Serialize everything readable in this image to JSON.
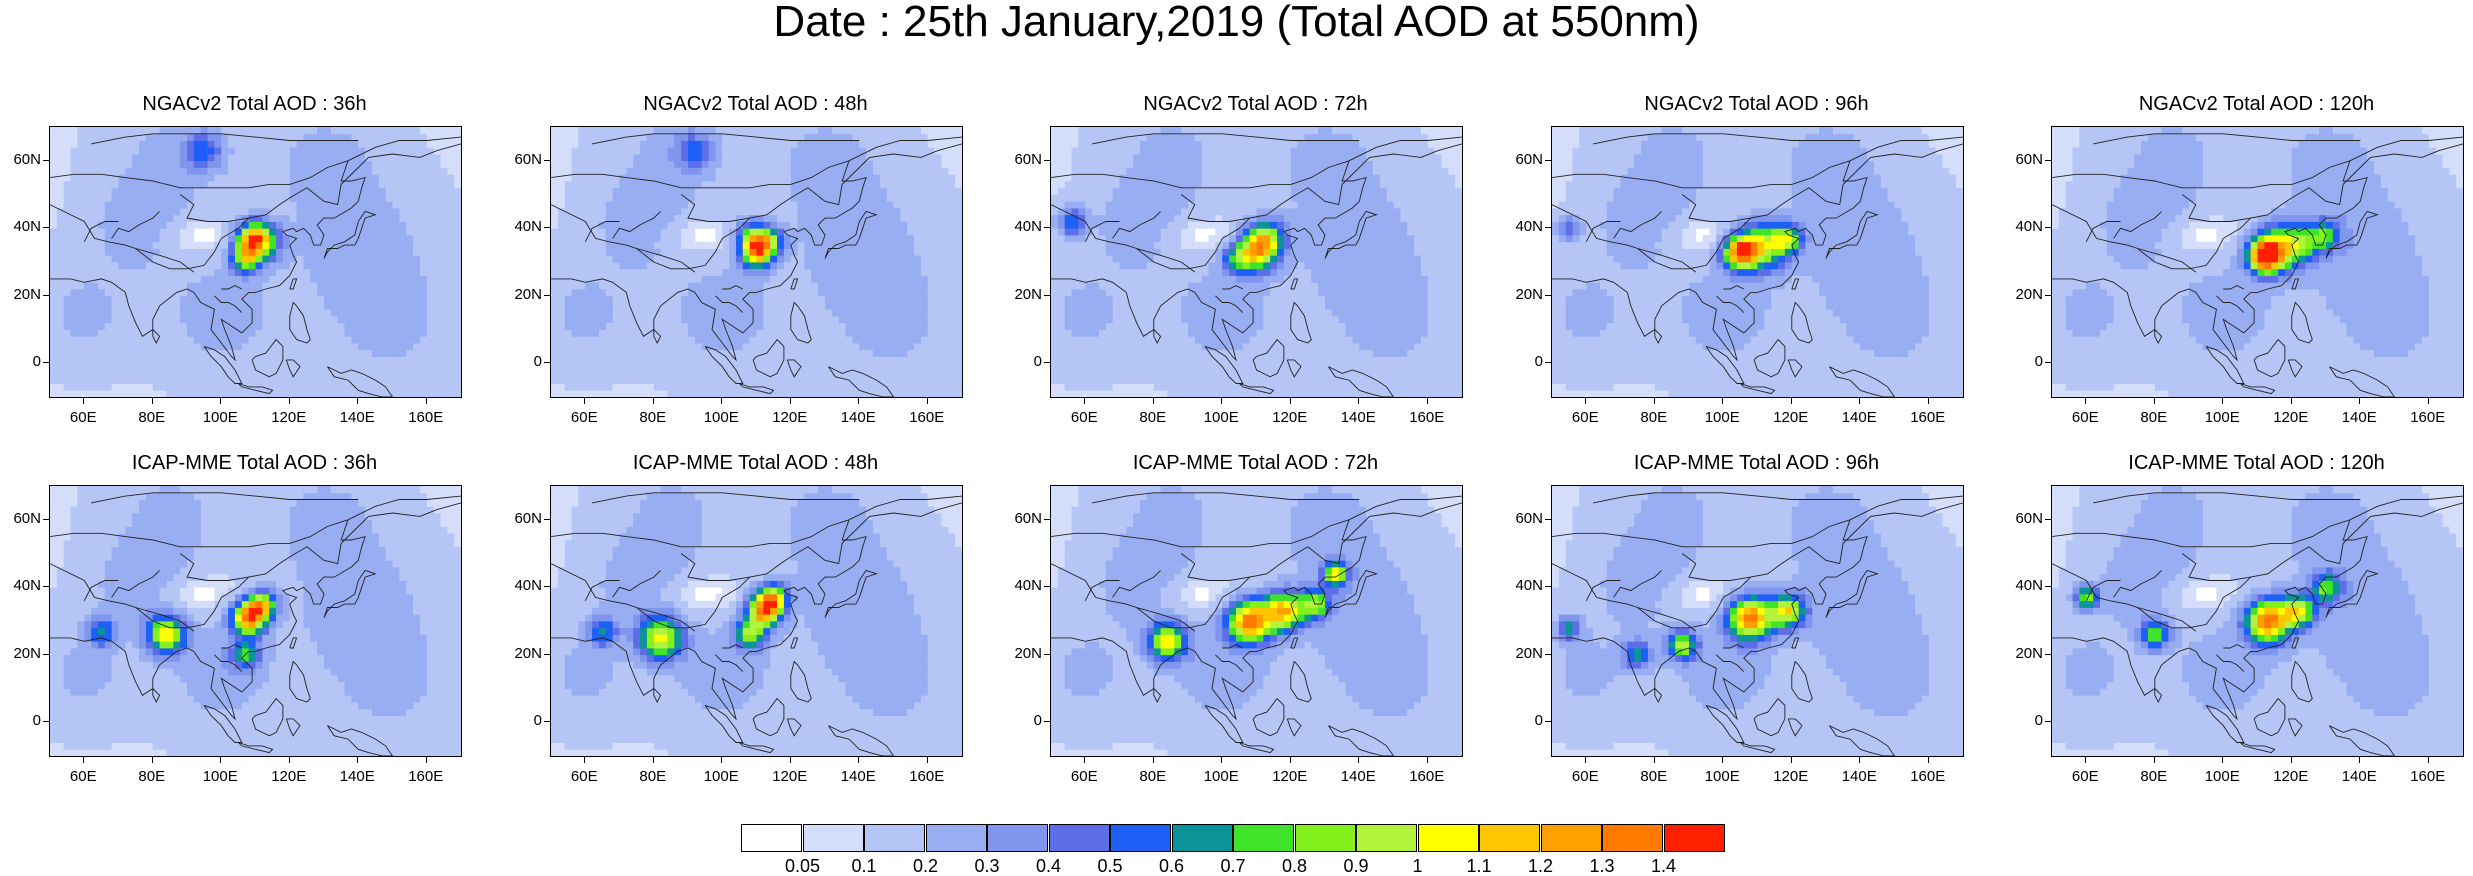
{
  "title": "Date : 25th January,2019 (Total AOD at 550nm)",
  "panels": [
    {
      "title": "NGACv2 Total AOD : 36h"
    },
    {
      "title": "NGACv2 Total AOD : 48h"
    },
    {
      "title": "NGACv2 Total AOD : 72h"
    },
    {
      "title": "NGACv2 Total AOD : 96h"
    },
    {
      "title": "NGACv2 Total AOD : 120h"
    },
    {
      "title": "ICAP-MME Total AOD : 36h"
    },
    {
      "title": "ICAP-MME Total AOD : 48h"
    },
    {
      "title": "ICAP-MME Total AOD : 72h"
    },
    {
      "title": "ICAP-MME Total AOD : 96h"
    },
    {
      "title": "ICAP-MME Total AOD : 120h"
    }
  ],
  "map": {
    "lon_range": [
      50,
      170
    ],
    "lat_range": [
      -10,
      70
    ],
    "lat_ticks": [
      {
        "value": 60,
        "label": "60N"
      },
      {
        "value": 40,
        "label": "40N"
      },
      {
        "value": 20,
        "label": "20N"
      },
      {
        "value": 0,
        "label": "0"
      }
    ],
    "lon_ticks": [
      {
        "value": 60,
        "label": "60E"
      },
      {
        "value": 80,
        "label": "80E"
      },
      {
        "value": 100,
        "label": "100E"
      },
      {
        "value": 120,
        "label": "120E"
      },
      {
        "value": 140,
        "label": "140E"
      },
      {
        "value": 160,
        "label": "160E"
      }
    ]
  },
  "colorbar": {
    "colors": [
      "#ffffff",
      "#d4defb",
      "#b4c5f6",
      "#98adf2",
      "#7f95ee",
      "#5d6fe8",
      "#1e5ff5",
      "#0c9498",
      "#3fe32a",
      "#84f01c",
      "#b2f33c",
      "#ffff00",
      "#ffc500",
      "#ffa000",
      "#ff7a00",
      "#ff2000"
    ],
    "labels": [
      "0.05",
      "0.1",
      "0.2",
      "0.3",
      "0.4",
      "0.5",
      "0.6",
      "0.7",
      "0.8",
      "0.9",
      "1",
      "1.1",
      "1.2",
      "1.3",
      "1.4"
    ]
  }
}
